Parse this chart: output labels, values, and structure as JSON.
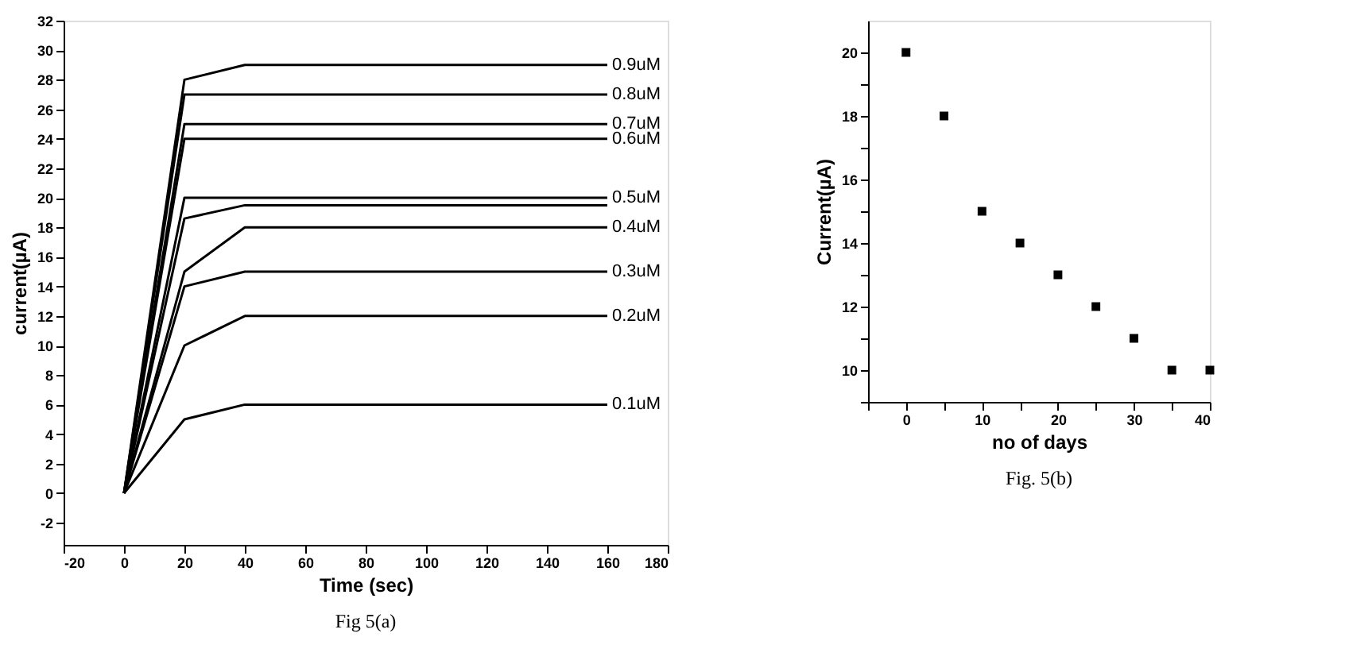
{
  "chart_data": [
    {
      "type": "line",
      "xlabel": "Time (sec)",
      "ylabel": "current(µA)",
      "x": [
        0,
        20,
        40,
        160
      ],
      "xlim": [
        -20,
        180
      ],
      "xticks": [
        -20,
        0,
        20,
        40,
        60,
        80,
        100,
        120,
        140,
        160,
        180
      ],
      "ylim": [
        -3.5,
        32
      ],
      "yticks": [
        -2,
        0,
        2,
        4,
        6,
        8,
        10,
        12,
        14,
        16,
        18,
        20,
        22,
        24,
        26,
        28,
        30,
        32
      ],
      "grid": false,
      "legend": false,
      "marker": "none",
      "line_style": "solid",
      "annotations": [
        "Fig 5(a)"
      ],
      "series": [
        {
          "name": "0.9uM",
          "color": "#000000",
          "values": [
            0,
            28,
            29,
            29
          ]
        },
        {
          "name": "0.8uM",
          "color": "#000000",
          "values": [
            0,
            27,
            27,
            27
          ]
        },
        {
          "name": "0.7uM",
          "color": "#000000",
          "values": [
            0,
            25,
            25,
            25
          ]
        },
        {
          "name": "0.6uM",
          "color": "#000000",
          "values": [
            0,
            24,
            24,
            24
          ]
        },
        {
          "name": "0.5uM",
          "color": "#000000",
          "values": [
            0,
            20,
            20,
            20
          ]
        },
        {
          "color": "#000000",
          "values": [
            0,
            18.6,
            19.5,
            19.5
          ]
        },
        {
          "name": "0.4uM",
          "color": "#000000",
          "values": [
            0,
            15,
            18,
            18
          ]
        },
        {
          "name": "0.3uM",
          "color": "#000000",
          "values": [
            0,
            14,
            15,
            15
          ]
        },
        {
          "name": "0.2uM",
          "color": "#000000",
          "values": [
            0,
            10,
            12,
            12
          ]
        },
        {
          "name": "0.1uM",
          "color": "#000000",
          "values": [
            0,
            5,
            6,
            6
          ]
        }
      ]
    },
    {
      "type": "scatter",
      "xlabel": "no of days",
      "ylabel": "Current(µA)",
      "x": [
        0,
        5,
        10,
        15,
        20,
        25,
        30,
        35,
        40
      ],
      "xlim": [
        -5,
        40
      ],
      "xticks": [
        {
          "value": -5,
          "label": null
        },
        0,
        {
          "value": 5,
          "label": null
        },
        10,
        {
          "value": 15,
          "label": null
        },
        20,
        {
          "value": 25,
          "label": null
        },
        30,
        {
          "value": 35,
          "label": null
        },
        40
      ],
      "ylim": [
        9,
        21
      ],
      "yticks": [
        {
          "value": 9,
          "label": null
        },
        10,
        {
          "value": 11,
          "label": null
        },
        12,
        {
          "value": 13,
          "label": null
        },
        14,
        {
          "value": 15,
          "label": null
        },
        16,
        {
          "value": 17,
          "label": null
        },
        18,
        {
          "value": 19,
          "label": null
        },
        20
      ],
      "grid": false,
      "legend": false,
      "marker": "square",
      "annotations": [
        "Fig. 5(b)"
      ],
      "series": [
        {
          "color": "#000000",
          "values": [
            20,
            18,
            15,
            14,
            13,
            12,
            11,
            10,
            10
          ]
        }
      ]
    }
  ]
}
